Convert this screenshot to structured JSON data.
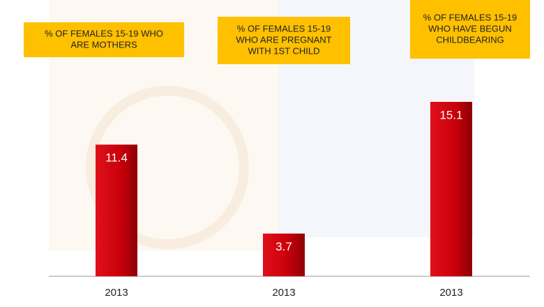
{
  "chart_data": {
    "type": "bar",
    "categories": [
      "2013",
      "2013",
      "2013"
    ],
    "values": [
      11.4,
      3.7,
      15.1
    ],
    "color": "#c8000a",
    "annotations": [
      [
        "% OF FEMALES 15-19 WHO",
        "ARE MOTHERS"
      ],
      [
        "% OF FEMALES 15-19",
        "WHO ARE PREGNANT",
        "WITH 1ST CHILD"
      ],
      [
        "% OF FEMALES 15-19",
        "WHO HAVE BEGUN",
        "CHILDBEARING"
      ]
    ]
  }
}
